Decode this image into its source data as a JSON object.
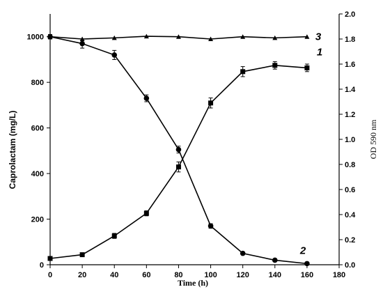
{
  "chart_data": {
    "type": "line",
    "xlabel": "Time (h)",
    "ylabel": "Caprolactam  (mg/L)",
    "y2label": "OD 590 nm",
    "xlim": [
      0,
      180
    ],
    "ylim": [
      0,
      1100
    ],
    "y2lim": [
      0,
      2.0
    ],
    "x_ticks": [
      0,
      20,
      40,
      60,
      80,
      100,
      120,
      140,
      160,
      180
    ],
    "y_ticks": [
      0,
      200,
      400,
      600,
      800,
      1000
    ],
    "y2_ticks": [
      "0.0",
      "0.2",
      "0.4",
      "0.6",
      "0.8",
      "1.0",
      "1.2",
      "1.4",
      "1.6",
      "1.8",
      "2.0"
    ],
    "grid": false,
    "series": [
      {
        "name": "1",
        "axis": "right",
        "marker": "square",
        "x": [
          0,
          20,
          40,
          60,
          80,
          100,
          120,
          140,
          160
        ],
        "y": [
          0.05,
          0.08,
          0.23,
          0.41,
          0.78,
          1.29,
          1.54,
          1.59,
          1.57
        ],
        "err": [
          0.01,
          0.01,
          0.02,
          0.02,
          0.04,
          0.04,
          0.04,
          0.03,
          0.03
        ]
      },
      {
        "name": "2",
        "axis": "left",
        "marker": "circle",
        "x": [
          0,
          20,
          40,
          60,
          80,
          100,
          120,
          140,
          160
        ],
        "y": [
          1000,
          970,
          920,
          730,
          505,
          170,
          50,
          20,
          5
        ],
        "err": [
          10,
          20,
          20,
          15,
          15,
          10,
          5,
          5,
          3
        ]
      },
      {
        "name": "3",
        "axis": "left",
        "marker": "triangle",
        "x": [
          0,
          20,
          40,
          60,
          80,
          100,
          120,
          140,
          160
        ],
        "y": [
          1000,
          990,
          995,
          1002,
          1000,
          990,
          1000,
          995,
          1000
        ],
        "err": [
          0,
          0,
          0,
          0,
          0,
          0,
          0,
          0,
          0
        ]
      }
    ]
  }
}
